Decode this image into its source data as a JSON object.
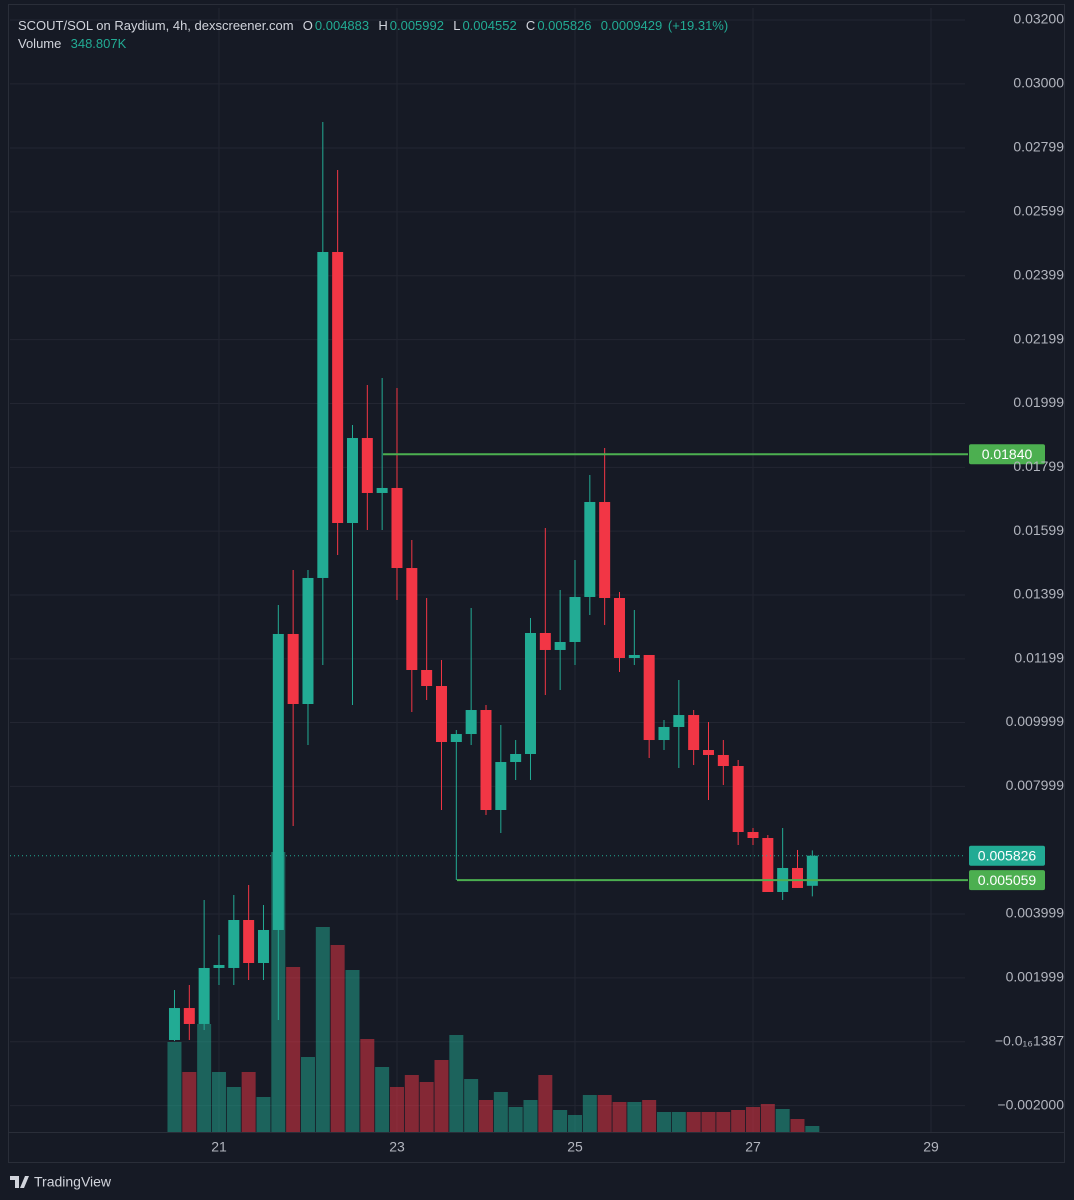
{
  "chart_data": {
    "type": "candlestick",
    "title": "SCOUT/SOL on Raydium, 4h, dexscreener.com",
    "legend_labels": [
      "O",
      "H",
      "L",
      "C"
    ],
    "change": 0.0009429,
    "change_percent": {
      "value": 19.31,
      "label": "(+19.31%)"
    },
    "up_color": "#22ab94",
    "down_color": "#f23645",
    "grid": true,
    "x": [
      20.5,
      20.6667,
      20.8333,
      21,
      21.1667,
      21.3333,
      21.5,
      21.6667,
      21.8333,
      22,
      22.1667,
      22.3333,
      22.5,
      22.6667,
      22.8333,
      23,
      23.1667,
      23.3333,
      23.5,
      23.6667,
      23.8333,
      24,
      24.1667,
      24.3333,
      24.5,
      24.6667,
      24.8333,
      25,
      25.1667,
      25.3333,
      25.5,
      25.6667,
      25.8333,
      26,
      26.1667,
      26.3333,
      26.5,
      26.6667,
      26.8333,
      27,
      27.1667,
      27.3333,
      27.5,
      27.6667
    ],
    "open": [
      5.3e-05,
      0.001055,
      0.000555,
      0.002309,
      0.002309,
      0.003812,
      0.002465,
      0.003499,
      0.01277,
      0.010577,
      0.014524,
      0.024734,
      0.016246,
      0.018908,
      0.017186,
      0.017343,
      0.014836,
      0.011642,
      0.011141,
      0.009387,
      0.009637,
      0.010389,
      0.007257,
      0.00876,
      0.009011,
      0.012801,
      0.012269,
      0.012519,
      0.013929,
      0.016904,
      0.013897,
      0.012018,
      0.012112,
      0.009449,
      0.009857,
      0.010232,
      0.009136,
      0.00898,
      0.008635,
      0.006568,
      0.00638,
      0.004689,
      0.005441,
      0.004883
    ],
    "high": [
      0.001619,
      0.001776,
      0.004439,
      0.003342,
      0.004595,
      0.004908,
      0.004282,
      0.013678,
      0.014774,
      0.014774,
      0.028805,
      0.027302,
      0.019316,
      0.020568,
      0.020788,
      0.020475,
      0.015714,
      0.013897,
      0.011955,
      0.009763,
      0.013584,
      0.010546,
      0.009919,
      0.009449,
      0.013271,
      0.01609,
      0.014148,
      0.015087,
      0.01775,
      0.018595,
      0.014085,
      0.013521,
      0.012112,
      0.010076,
      0.011329,
      0.010389,
      0.010013,
      0.009449,
      0.008823,
      0.006694,
      0.006474,
      0.006694,
      0.006005,
      0.005992
    ],
    "low": [
      2e-05,
      5.3e-05,
      0.000367,
      0.001776,
      0.001776,
      0.001933,
      0.001933,
      0.00068,
      0.006756,
      0.009293,
      0.011799,
      0.015244,
      0.010546,
      0.016027,
      0.016027,
      0.013835,
      0.010326,
      0.010702,
      0.007257,
      0.005065,
      0.009293,
      0.007101,
      0.006537,
      0.008197,
      0.008197,
      0.010859,
      0.011015,
      0.011799,
      0.013365,
      0.013051,
      0.01158,
      0.011799,
      0.008886,
      0.009136,
      0.008573,
      0.008666,
      0.00757,
      0.00804,
      0.006161,
      0.006161,
      0.004689,
      0.004439,
      0.004815,
      0.004552
    ],
    "close": [
      0.001055,
      0.000555,
      0.002309,
      0.002403,
      0.003812,
      0.002465,
      0.003499,
      0.01277,
      0.010577,
      0.014524,
      0.024734,
      0.016246,
      0.018908,
      0.017186,
      0.017343,
      0.014836,
      0.011642,
      0.011141,
      0.009387,
      0.009637,
      0.010389,
      0.007257,
      0.00876,
      0.009011,
      0.012801,
      0.012269,
      0.012519,
      0.013929,
      0.016904,
      0.013897,
      0.012018,
      0.012112,
      0.009449,
      0.009857,
      0.010232,
      0.009136,
      0.00898,
      0.008635,
      0.006568,
      0.00638,
      0.004689,
      0.005441,
      0.004815,
      0.005826
    ],
    "volume": {
      "name": "Volume",
      "values": [
        5220000,
        3480000,
        6264000,
        3480000,
        2610000,
        3480000,
        2030000,
        16240000,
        9570000,
        4350000,
        11890000,
        10846000,
        9396000,
        5394000,
        3770000,
        2610000,
        3306000,
        2900000,
        4176000,
        5626000,
        3074000,
        1856000,
        2320000,
        1450000,
        1856000,
        3306000,
        1276000,
        986000,
        2146000,
        2146000,
        1740000,
        1740000,
        1856000,
        1160000,
        1160000,
        1160000,
        1160000,
        1160000,
        1276000,
        1450000,
        1624000,
        1334000,
        754000,
        348807
      ],
      "value_labels": [
        null,
        null,
        null,
        null,
        null,
        null,
        null,
        null,
        null,
        null,
        null,
        null,
        null,
        null,
        null,
        null,
        null,
        null,
        null,
        null,
        null,
        null,
        null,
        null,
        null,
        null,
        null,
        null,
        null,
        null,
        null,
        null,
        null,
        null,
        null,
        null,
        null,
        null,
        null,
        null,
        null,
        null,
        null,
        "348.807K"
      ]
    },
    "hlines": [
      {
        "value": 0.0184,
        "label": "0.01840",
        "x_start": 22.843,
        "color": "#4caf50"
      },
      {
        "value": 0.005059,
        "x_start": 23.674,
        "color": "#4caf50"
      }
    ],
    "xlim": [
      18.652,
      29.382
    ],
    "xticks": [
      21,
      23,
      25,
      27,
      29
    ],
    "ylim": [
      -0.002828,
      0.032376
    ],
    "yticks": [
      {
        "value": 0.032,
        "label": "0.03200"
      },
      {
        "value": 0.03,
        "label": "0.03000"
      },
      {
        "value": 0.02799,
        "label": "0.02799"
      },
      {
        "value": 0.02599,
        "label": "0.02599"
      },
      {
        "value": 0.02399,
        "label": "0.02399"
      },
      {
        "value": 0.02199,
        "label": "0.02199"
      },
      {
        "value": 0.01999,
        "label": "0.01999"
      },
      {
        "value": 0.01799,
        "label": "0.01799"
      },
      {
        "value": 0.01599,
        "label": "0.01599"
      },
      {
        "value": 0.01399,
        "label": "0.01399"
      },
      {
        "value": 0.01199,
        "label": "0.01199"
      },
      {
        "value": 0.009999,
        "label": "0.009999"
      },
      {
        "value": 0.007999,
        "label": "0.007999"
      },
      {
        "value": 0.003999,
        "label": "0.003999"
      },
      {
        "value": 0.001999,
        "label": "0.001999"
      },
      {
        "value": -1.387e-17,
        "label": "−0.0₁₆1387"
      },
      {
        "value": -0.002,
        "label": "−0.002000"
      }
    ],
    "branding": "TradingView"
  }
}
